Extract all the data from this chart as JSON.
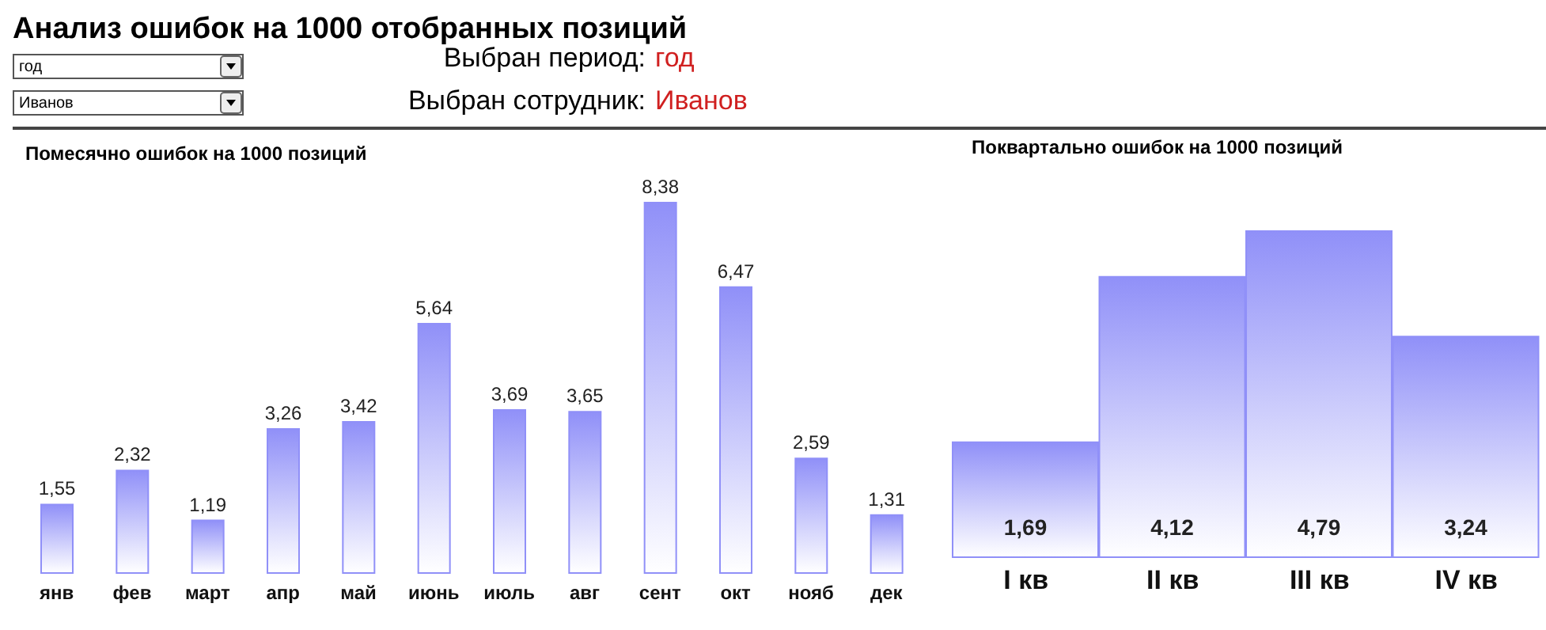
{
  "chart_data": [
    {
      "type": "other",
      "title": "Анализ ошибок на 1000 отобранных позиций",
      "annotations": [
        "год",
        "Иванов",
        "Выбран период:",
        "год",
        "Выбран сотрудник:",
        "Иванов"
      ]
    },
    {
      "type": "bar",
      "title": "Помесячно ошибок на 1000 позиций",
      "categories": [
        "янв",
        "фев",
        "март",
        "апр",
        "май",
        "июнь",
        "июль",
        "авг",
        "сент",
        "окт",
        "нояб",
        "дек"
      ],
      "values": [
        1.55,
        2.32,
        1.19,
        3.26,
        3.42,
        5.64,
        3.69,
        3.65,
        8.38,
        6.47,
        2.59,
        1.31
      ],
      "value_labels": [
        "1,55",
        "2,32",
        "1,19",
        "3,26",
        "3,42",
        "5,64",
        "3,69",
        "3,65",
        "8,38",
        "6,47",
        "2,59",
        "1,31"
      ],
      "color": "#9090f8"
    },
    {
      "type": "bar",
      "title": "Поквартально ошибок на 1000 позиций",
      "categories": [
        "I кв",
        "II кв",
        "III кв",
        "IV кв"
      ],
      "values": [
        1.69,
        4.12,
        4.79,
        3.24
      ],
      "value_labels": [
        "1,69",
        "4,12",
        "4,79",
        "3,24"
      ],
      "color": "#9090f8"
    }
  ]
}
